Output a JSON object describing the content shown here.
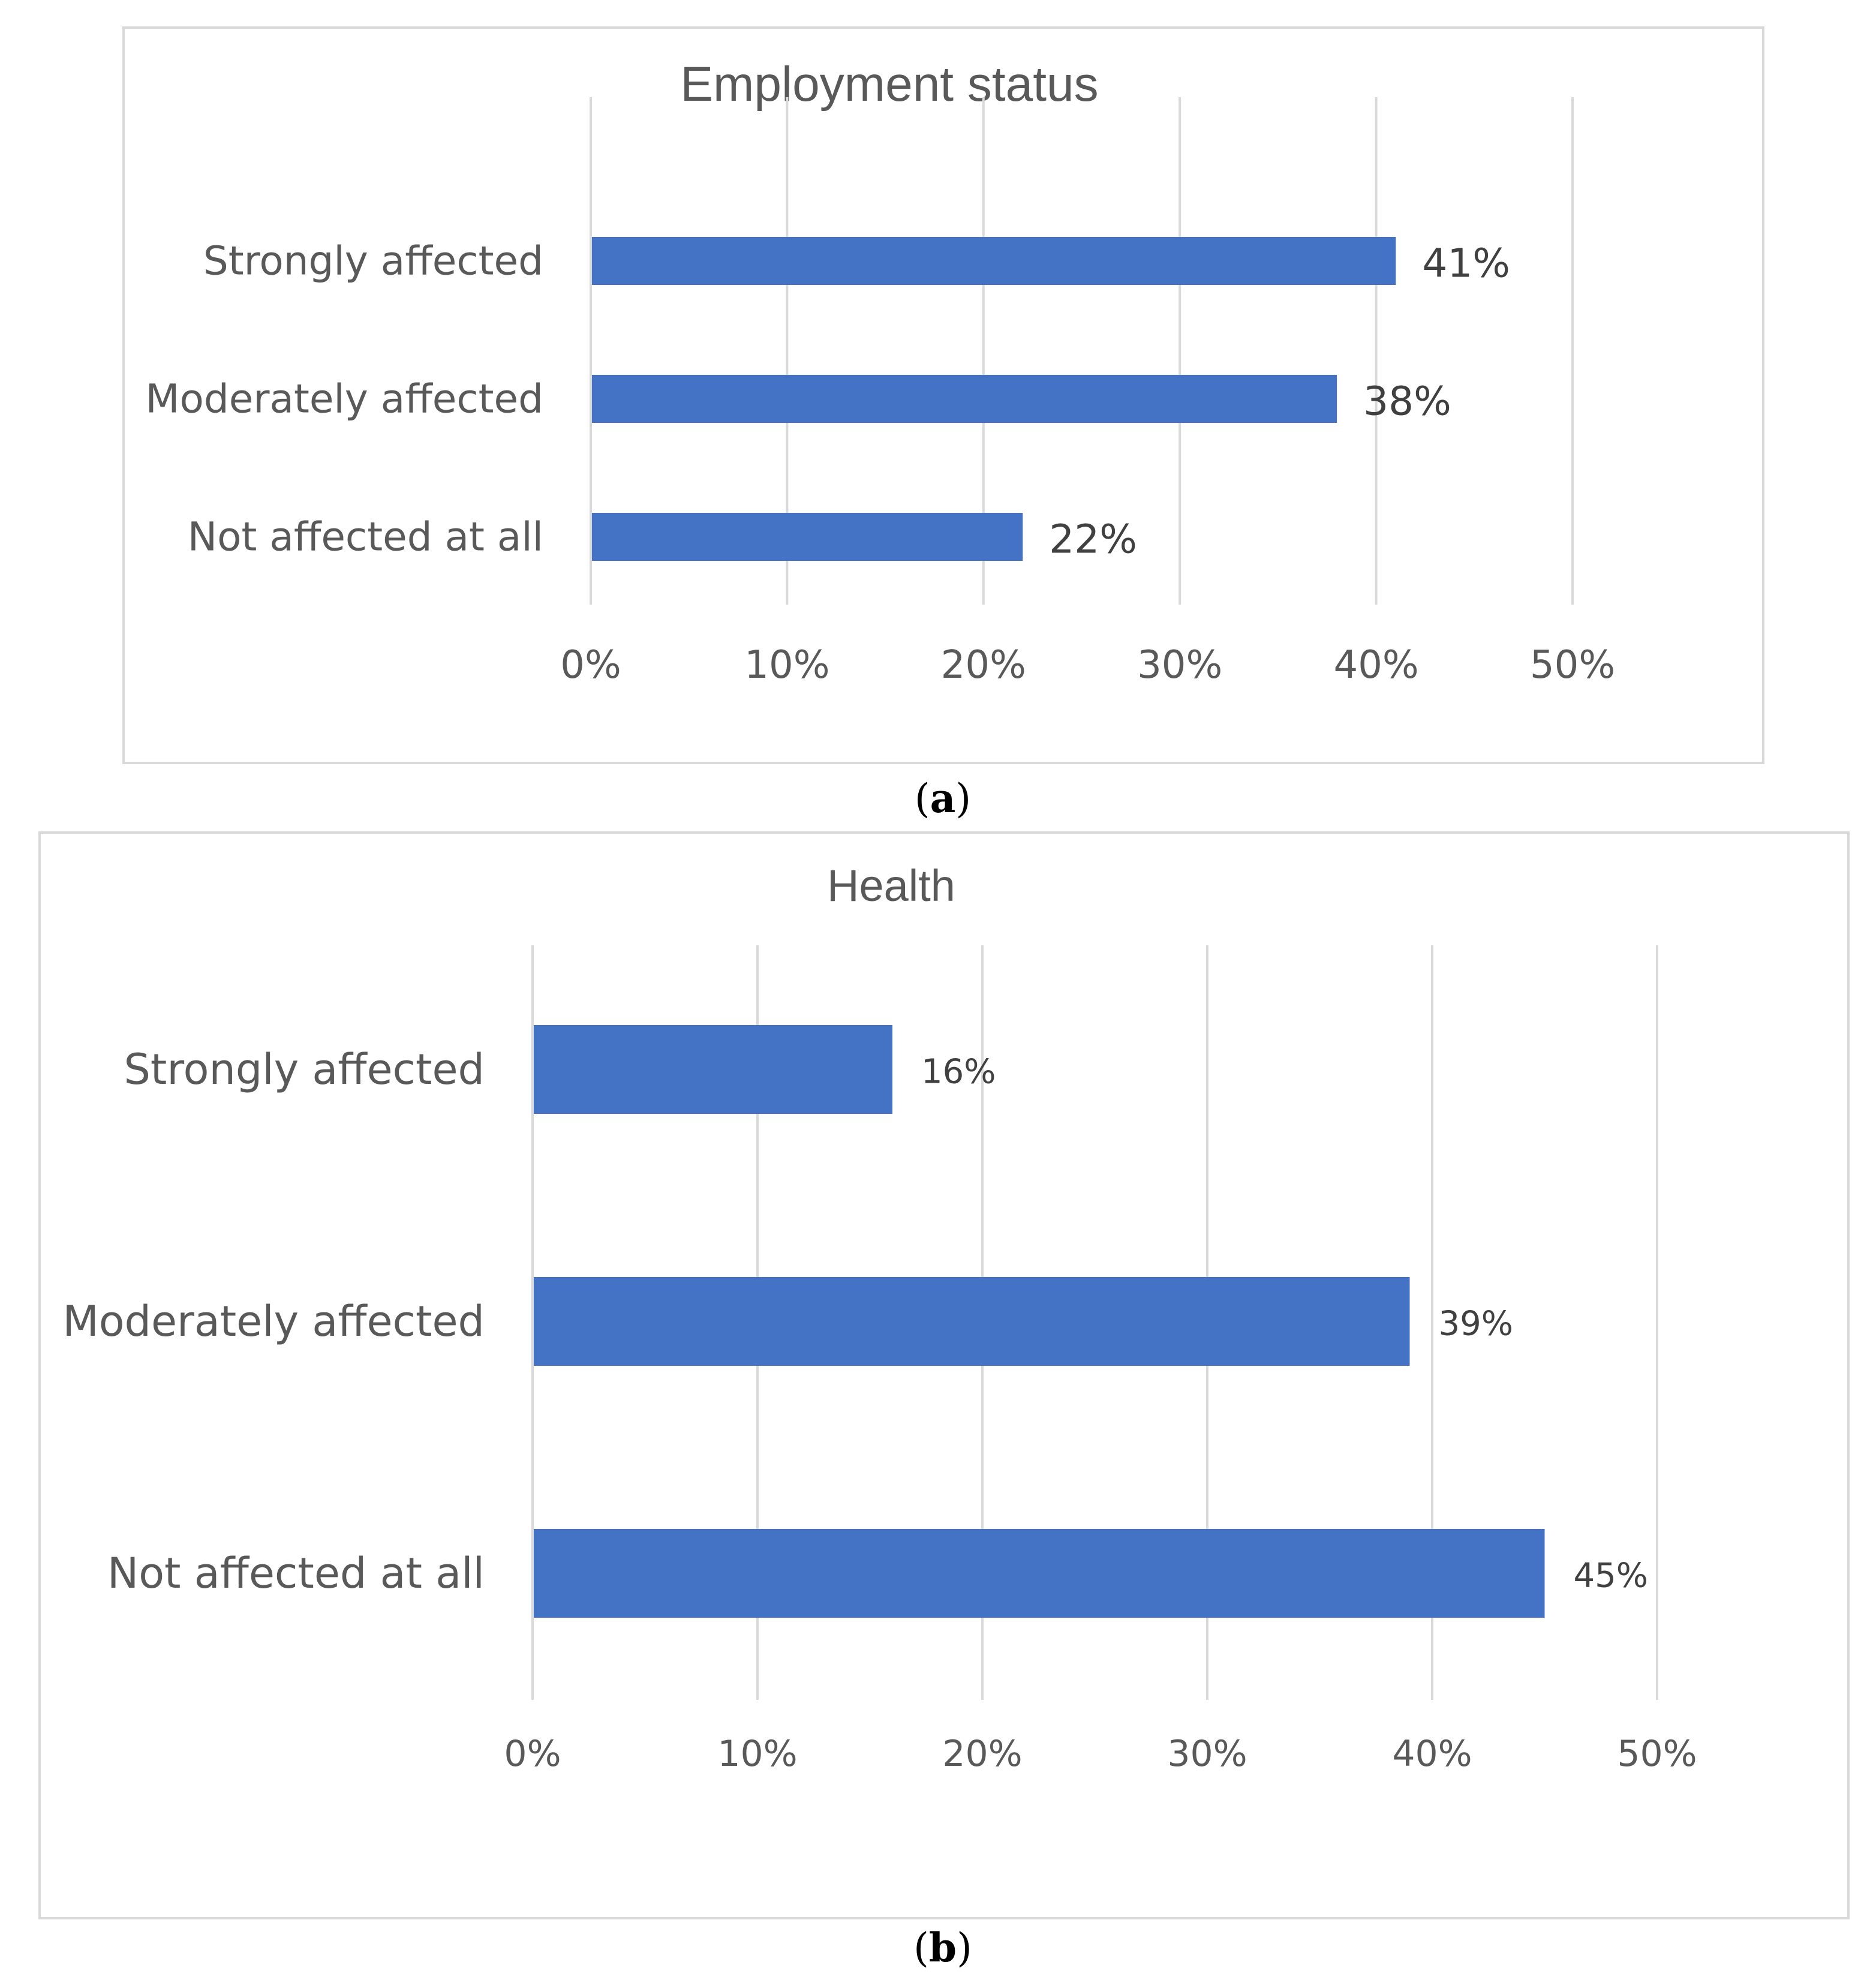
{
  "chart_data": [
    {
      "type": "bar",
      "orientation": "horizontal",
      "title": "Employment status",
      "categories": [
        "Strongly affected",
        "Moderately affected",
        "Not affected at all"
      ],
      "values": [
        41,
        38,
        22
      ],
      "data_labels": [
        "41%",
        "38%",
        "22%"
      ],
      "xlim": [
        0,
        50
      ],
      "xticks": [
        "0%",
        "10%",
        "20%",
        "30%",
        "40%",
        "50%"
      ],
      "grid": true,
      "bar_color": "#4472C4",
      "caption_letter": "a"
    },
    {
      "type": "bar",
      "orientation": "horizontal",
      "title": "Health",
      "categories": [
        "Strongly affected",
        "Moderately affected",
        "Not affected at all"
      ],
      "values": [
        16,
        39,
        45
      ],
      "data_labels": [
        "16%",
        "39%",
        "45%"
      ],
      "xlim": [
        0,
        50
      ],
      "xticks": [
        "0%",
        "10%",
        "20%",
        "30%",
        "40%",
        "50%"
      ],
      "grid": true,
      "bar_color": "#4472C4",
      "caption_letter": "b"
    }
  ]
}
